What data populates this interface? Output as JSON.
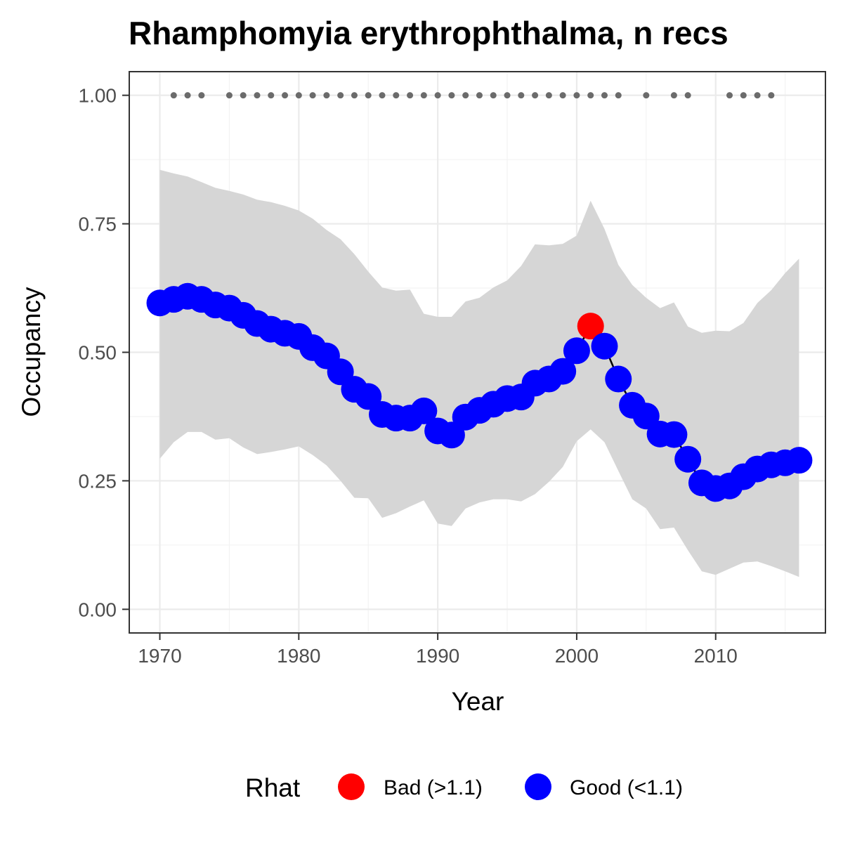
{
  "chart_data": {
    "type": "line",
    "title": "Rhamphomyia erythrophthalma, n recs",
    "xlabel": "Year",
    "ylabel": "Occupancy",
    "xlim": [
      1967.8,
      2017.9
    ],
    "ylim": [
      -0.046,
      1.046
    ],
    "x_ticks": [
      1970,
      1980,
      1990,
      2000,
      2010
    ],
    "x_tick_labels": [
      "1970",
      "1980",
      "1990",
      "2000",
      "2010"
    ],
    "y_ticks": [
      0,
      0.25,
      0.5,
      0.75,
      1.0
    ],
    "y_tick_labels": [
      "0.00",
      "0.25",
      "0.50",
      "0.75",
      "1.00"
    ],
    "grid": true,
    "legend_position": "bottom",
    "legend": {
      "title": "Rhat",
      "entries": [
        {
          "label": "Bad (>1.1)",
          "color": "#ff0000"
        },
        {
          "label": "Good (<1.1)",
          "color": "#0000ff"
        }
      ]
    },
    "colors": {
      "good": "#0000ff",
      "bad": "#ff0000",
      "line": "#000000",
      "ribbon": "#d6d6d6",
      "record_marker": "#6b6b6b"
    },
    "years": [
      1970,
      1971,
      1972,
      1973,
      1974,
      1975,
      1976,
      1977,
      1978,
      1979,
      1980,
      1981,
      1982,
      1983,
      1984,
      1985,
      1986,
      1987,
      1988,
      1989,
      1990,
      1991,
      1992,
      1993,
      1994,
      1995,
      1996,
      1997,
      1998,
      1999,
      2000,
      2001,
      2002,
      2003,
      2004,
      2005,
      2006,
      2007,
      2008,
      2009,
      2010,
      2011,
      2012,
      2013,
      2014,
      2015,
      2016
    ],
    "occupancy": [
      0.596,
      0.603,
      0.609,
      0.603,
      0.592,
      0.586,
      0.572,
      0.556,
      0.545,
      0.537,
      0.531,
      0.509,
      0.493,
      0.462,
      0.428,
      0.414,
      0.379,
      0.372,
      0.372,
      0.386,
      0.347,
      0.339,
      0.374,
      0.387,
      0.399,
      0.41,
      0.413,
      0.44,
      0.448,
      0.463,
      0.503,
      0.551,
      0.512,
      0.448,
      0.397,
      0.376,
      0.341,
      0.34,
      0.292,
      0.246,
      0.235,
      0.24,
      0.258,
      0.273,
      0.281,
      0.285,
      0.29
    ],
    "lower": [
      0.293,
      0.325,
      0.345,
      0.345,
      0.33,
      0.333,
      0.315,
      0.302,
      0.306,
      0.311,
      0.317,
      0.3,
      0.28,
      0.25,
      0.217,
      0.216,
      0.178,
      0.187,
      0.2,
      0.212,
      0.167,
      0.162,
      0.196,
      0.208,
      0.214,
      0.214,
      0.21,
      0.224,
      0.248,
      0.277,
      0.327,
      0.35,
      0.325,
      0.269,
      0.214,
      0.196,
      0.156,
      0.159,
      0.115,
      0.074,
      0.067,
      0.079,
      0.091,
      0.093,
      0.084,
      0.074,
      0.063
    ],
    "upper": [
      0.855,
      0.848,
      0.842,
      0.831,
      0.82,
      0.814,
      0.807,
      0.797,
      0.792,
      0.785,
      0.776,
      0.76,
      0.738,
      0.72,
      0.691,
      0.657,
      0.626,
      0.62,
      0.622,
      0.575,
      0.569,
      0.569,
      0.599,
      0.606,
      0.626,
      0.64,
      0.668,
      0.71,
      0.708,
      0.711,
      0.727,
      0.795,
      0.74,
      0.67,
      0.631,
      0.606,
      0.586,
      0.597,
      0.55,
      0.538,
      0.542,
      0.541,
      0.557,
      0.596,
      0.621,
      0.654,
      0.682
    ],
    "rhat_status": [
      "good",
      "good",
      "good",
      "good",
      "good",
      "good",
      "good",
      "good",
      "good",
      "good",
      "good",
      "good",
      "good",
      "good",
      "good",
      "good",
      "good",
      "good",
      "good",
      "good",
      "good",
      "good",
      "good",
      "good",
      "good",
      "good",
      "good",
      "good",
      "good",
      "good",
      "good",
      "bad",
      "good",
      "good",
      "good",
      "good",
      "good",
      "good",
      "good",
      "good",
      "good",
      "good",
      "good",
      "good",
      "good",
      "good",
      "good"
    ],
    "record_years": [
      1971,
      1972,
      1973,
      1975,
      1976,
      1977,
      1978,
      1979,
      1980,
      1981,
      1982,
      1983,
      1984,
      1985,
      1986,
      1987,
      1988,
      1989,
      1990,
      1991,
      1992,
      1993,
      1994,
      1995,
      1996,
      1997,
      1998,
      1999,
      2000,
      2001,
      2002,
      2003,
      2005,
      2007,
      2008,
      2011,
      2012,
      2013,
      2014
    ],
    "record_value": 1.0
  }
}
